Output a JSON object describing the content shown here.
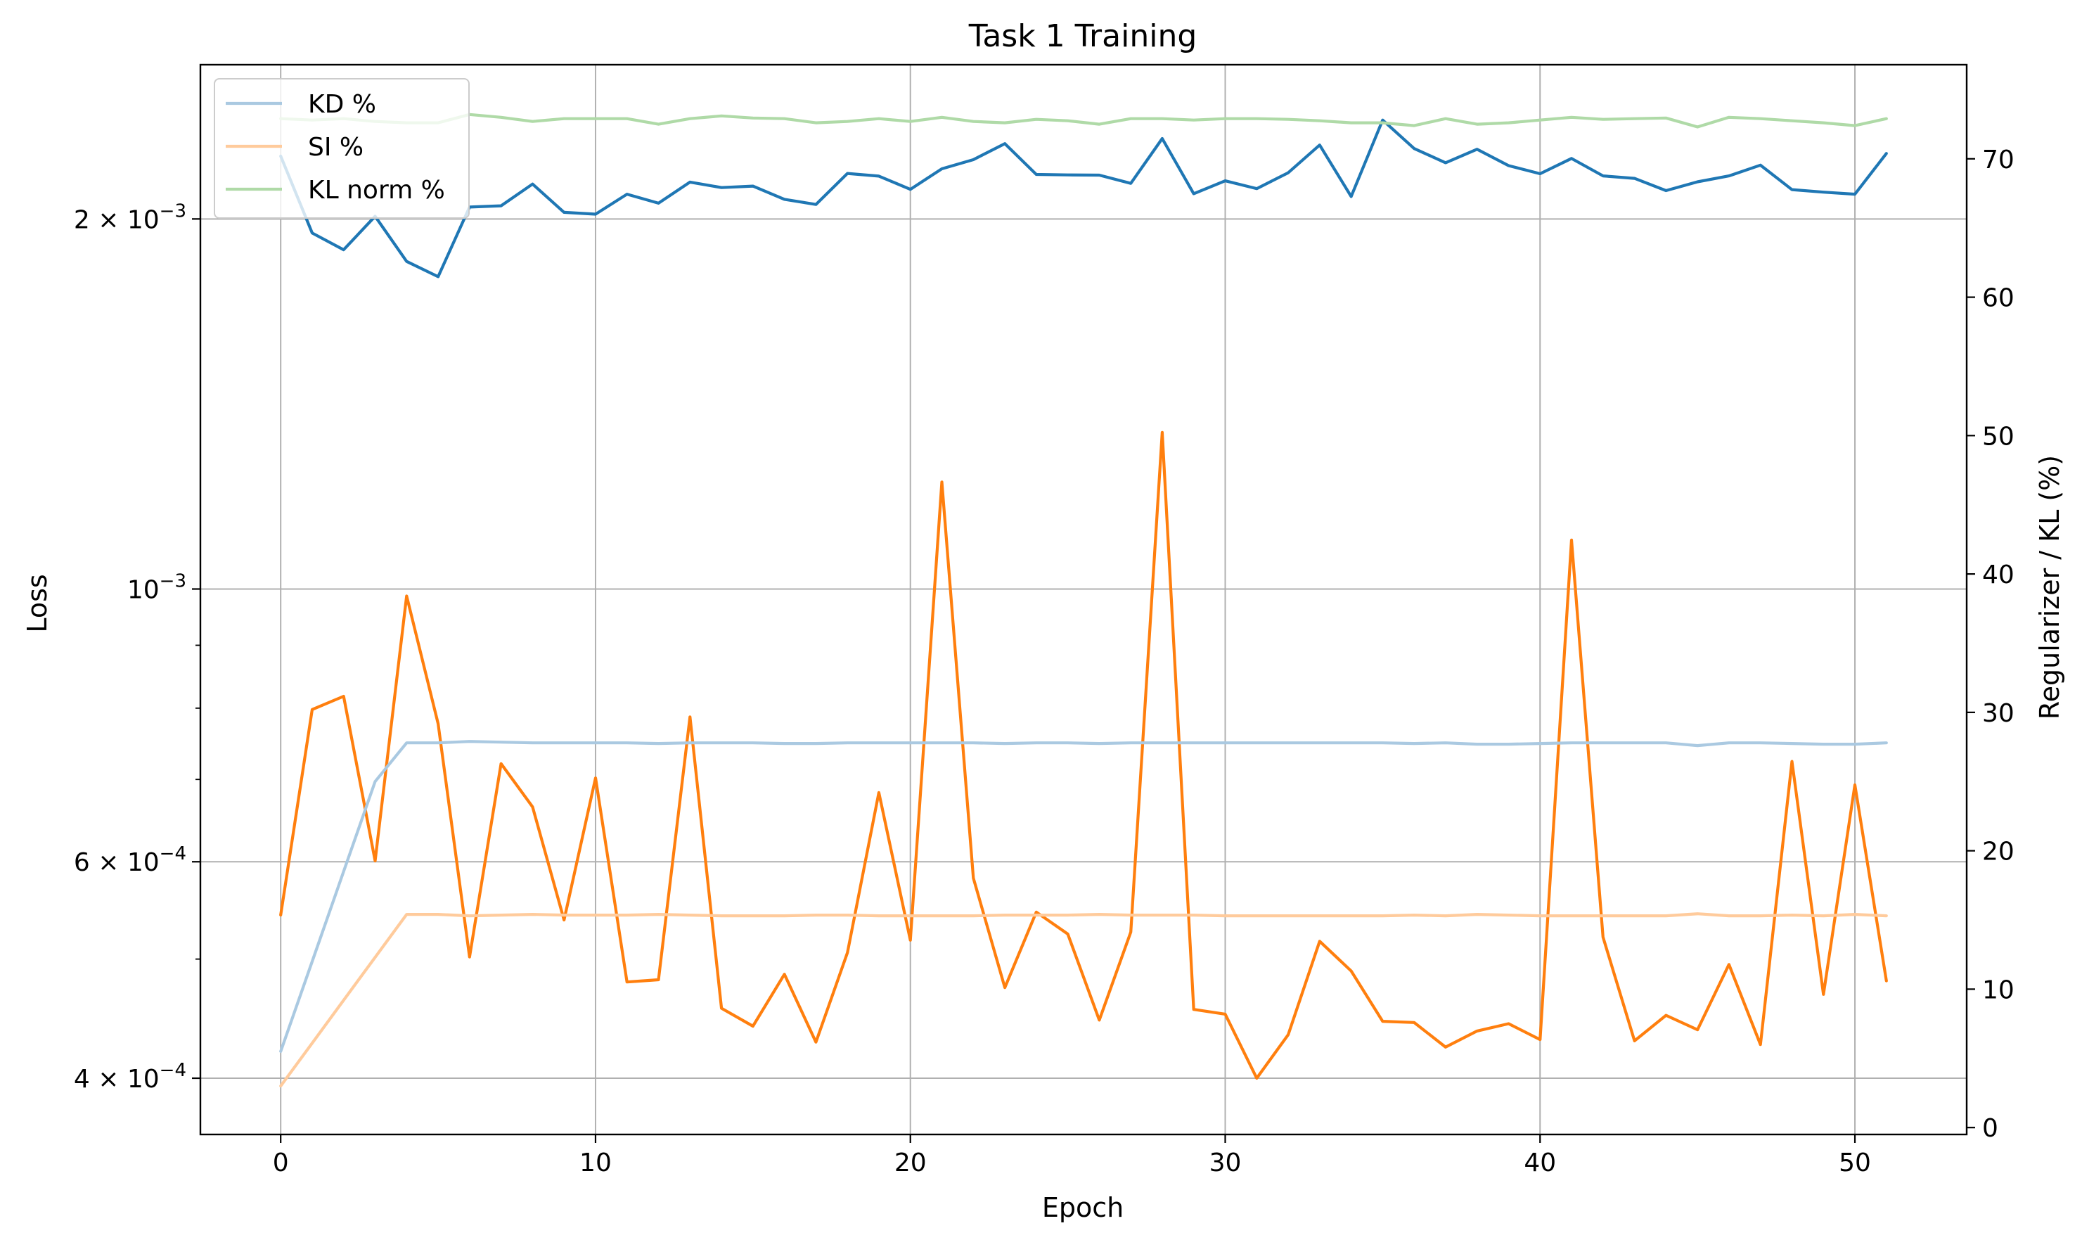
{
  "chart_data": {
    "type": "line",
    "title": "Task 1 Training",
    "xlabel": "Epoch",
    "ylabel": "Loss",
    "y2label": "Regularizer / KL (%)",
    "x": [
      0,
      1,
      2,
      3,
      4,
      5,
      6,
      7,
      8,
      9,
      10,
      11,
      12,
      13,
      14,
      15,
      16,
      17,
      18,
      19,
      20,
      21,
      22,
      23,
      24,
      25,
      26,
      27,
      28,
      29,
      30,
      31,
      32,
      33,
      34,
      35,
      36,
      37,
      38,
      39,
      40,
      41,
      42,
      43,
      44,
      45,
      46,
      47,
      48,
      49,
      50,
      51
    ],
    "xlim": [
      -2.55,
      53.55
    ],
    "xticks": [
      0,
      10,
      20,
      30,
      40,
      50
    ],
    "xtick_labels": [
      "0",
      "10",
      "20",
      "30",
      "40",
      "50"
    ],
    "y_scale": "log",
    "ylim": [
      0.00036,
      0.00267
    ],
    "y_ticks": [
      {
        "value": 0.002,
        "base": "2 × 10",
        "exp": "−3"
      },
      {
        "value": 0.001,
        "base": "10",
        "exp": "−3"
      },
      {
        "value": 0.0006,
        "base": "6 × 10",
        "exp": "−4"
      },
      {
        "value": 0.0004,
        "base": "4 × 10",
        "exp": "−4"
      }
    ],
    "y_minor_ticks": [
      0.0005,
      0.0007,
      0.0008,
      0.0009
    ],
    "y2lim": [
      -0.5,
      76.8
    ],
    "y2ticks": [
      0,
      10,
      20,
      30,
      40,
      50,
      60,
      70
    ],
    "y2tick_labels": [
      "0",
      "10",
      "20",
      "30",
      "40",
      "50",
      "60",
      "70"
    ],
    "grid": true,
    "legend_position": "top-left",
    "legend": [
      "KD %",
      "SI %",
      "KL norm %"
    ],
    "loss_series": [
      {
        "color": "#1f77b4",
        "axis": "left",
        "values": [
          0.00225,
          0.001948,
          0.001888,
          0.00201,
          0.001847,
          0.001795,
          0.002045,
          0.00205,
          0.002135,
          0.002025,
          0.002018,
          0.002095,
          0.00206,
          0.002143,
          0.002121,
          0.002127,
          0.002075,
          0.002055,
          0.002178,
          0.002167,
          0.002114,
          0.002197,
          0.002235,
          0.002303,
          0.002174,
          0.002172,
          0.002171,
          0.002138,
          0.002325,
          0.002097,
          0.002148,
          0.002117,
          0.002181,
          0.002297,
          0.002086,
          0.002407,
          0.002282,
          0.002222,
          0.002279,
          0.00221,
          0.002177,
          0.00224,
          0.002168,
          0.002158,
          0.002109,
          0.002144,
          0.002168,
          0.002212,
          0.002113,
          0.002103,
          0.002095,
          0.002261
        ]
      },
      {
        "color": "#ff7f0e",
        "axis": "left",
        "values": [
          0.000543,
          0.000798,
          0.000818,
          0.000601,
          0.000987,
          0.000777,
          0.000502,
          0.000721,
          0.000665,
          0.000538,
          0.000702,
          0.000479,
          0.000481,
          0.000787,
          0.000456,
          0.000441,
          0.000486,
          0.000428,
          0.000506,
          0.000683,
          0.000518,
          0.001222,
          0.000582,
          0.000474,
          0.000546,
          0.000524,
          0.000446,
          0.000526,
          0.001341,
          0.000455,
          0.000451,
          0.0004,
          0.000434,
          0.000517,
          0.000489,
          0.000445,
          0.000444,
          0.000424,
          0.000437,
          0.000443,
          0.00043,
          0.001096,
          0.000521,
          0.000429,
          0.00045,
          0.000438,
          0.000495,
          0.000426,
          0.000724,
          0.000468,
          0.000693,
          0.00048
        ]
      }
    ],
    "pct_series": [
      {
        "name": "KD %",
        "color": "#aac9e1",
        "axis": "right",
        "values": [
          5.5,
          12.0,
          18.5,
          25.0,
          27.8,
          27.8,
          27.9,
          27.85,
          27.8,
          27.8,
          27.8,
          27.8,
          27.75,
          27.8,
          27.8,
          27.8,
          27.75,
          27.75,
          27.8,
          27.8,
          27.8,
          27.8,
          27.8,
          27.75,
          27.8,
          27.8,
          27.75,
          27.8,
          27.8,
          27.8,
          27.8,
          27.8,
          27.8,
          27.8,
          27.8,
          27.8,
          27.75,
          27.8,
          27.7,
          27.7,
          27.75,
          27.8,
          27.8,
          27.8,
          27.8,
          27.6,
          27.8,
          27.8,
          27.75,
          27.7,
          27.7,
          27.8
        ]
      },
      {
        "name": "SI %",
        "color": "#ffcb9c",
        "axis": "right",
        "values": [
          3.0,
          6.1,
          9.2,
          12.3,
          15.4,
          15.4,
          15.3,
          15.35,
          15.4,
          15.35,
          15.35,
          15.35,
          15.4,
          15.35,
          15.3,
          15.3,
          15.3,
          15.35,
          15.35,
          15.3,
          15.3,
          15.3,
          15.3,
          15.35,
          15.35,
          15.35,
          15.4,
          15.35,
          15.35,
          15.35,
          15.3,
          15.3,
          15.3,
          15.3,
          15.3,
          15.3,
          15.35,
          15.3,
          15.4,
          15.35,
          15.3,
          15.3,
          15.3,
          15.3,
          15.3,
          15.45,
          15.3,
          15.3,
          15.35,
          15.3,
          15.4,
          15.3
        ]
      },
      {
        "name": "KL norm %",
        "color": "#afdaa7",
        "axis": "right",
        "values": [
          72.9,
          72.8,
          72.9,
          72.7,
          72.6,
          72.6,
          73.2,
          73.0,
          72.7,
          72.9,
          72.9,
          72.9,
          72.5,
          72.9,
          73.1,
          72.95,
          72.9,
          72.6,
          72.7,
          72.9,
          72.7,
          73.0,
          72.7,
          72.6,
          72.85,
          72.75,
          72.5,
          72.9,
          72.9,
          72.8,
          72.9,
          72.9,
          72.85,
          72.75,
          72.6,
          72.6,
          72.4,
          72.9,
          72.5,
          72.6,
          72.8,
          73.0,
          72.85,
          72.9,
          72.95,
          72.3,
          73.0,
          72.9,
          72.75,
          72.6,
          72.4,
          72.9
        ]
      }
    ]
  }
}
